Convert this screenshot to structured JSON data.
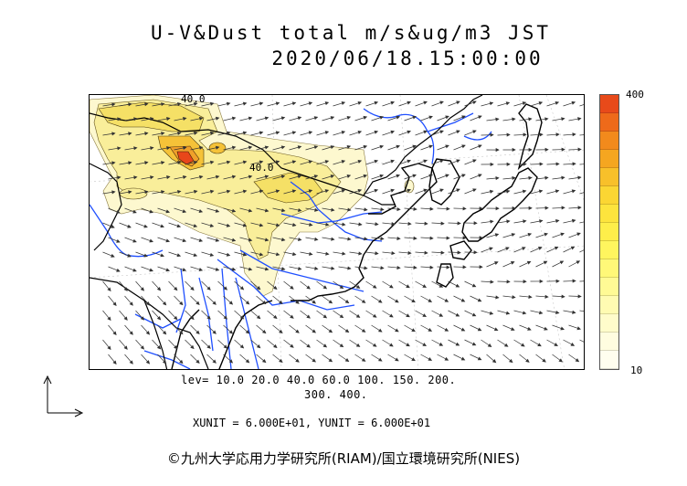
{
  "header": {
    "title_line1": "U-V&Dust total m/s&ug/m3 JST",
    "title_line2": "2020/06/18.15:00:00"
  },
  "map": {
    "contour_labels": [
      "40.0",
      "40.0"
    ],
    "colors": {
      "land_outline": "#000000",
      "rivers": "#1f4fff",
      "wind_arrows": "#333333",
      "dust_low": "#fdf8cf",
      "dust_mid": "#f5e066",
      "dust_high": "#f0b020",
      "dust_peak": "#e8461a"
    }
  },
  "colorbar": {
    "max_label": "400",
    "min_label": "10",
    "colors": [
      "#e84a1a",
      "#ee6a1a",
      "#f28a1c",
      "#f5a620",
      "#f8c02a",
      "#fbd633",
      "#fde43d",
      "#feee4a",
      "#fff55e",
      "#fff878",
      "#fffa95",
      "#fffbb2",
      "#fffccb",
      "#fffde0",
      "#fffeef"
    ]
  },
  "levels": {
    "line1": "lev= 10.0 20.0 40.0 60.0 100. 150. 200.",
    "line2": "300. 400."
  },
  "units": {
    "text": "XUNIT = 6.000E+01, YUNIT = 6.000E+01"
  },
  "footer": {
    "copyright": "©九州大学応用力学研究所(RIAM)/国立環境研究所(NIES)"
  }
}
